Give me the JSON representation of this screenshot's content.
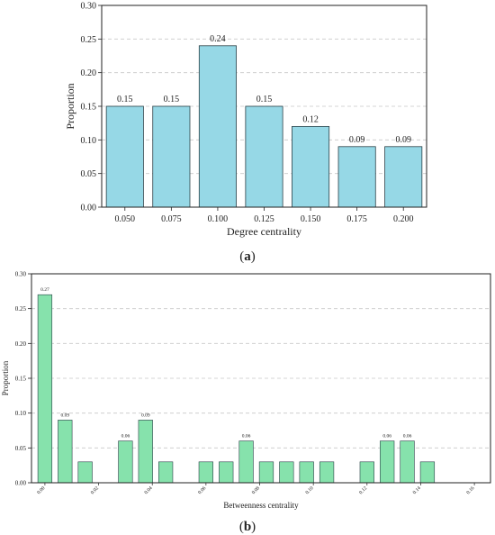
{
  "panels": [
    {
      "caption_letter": "a"
    },
    {
      "caption_letter": "b"
    }
  ],
  "colors": {
    "bar_a": "#96d8e6",
    "bar_b": "#86e2ac",
    "bar_edge": "#2b4148",
    "grid": "#c8c8c8"
  },
  "chart_data": [
    {
      "type": "bar",
      "categories": [
        "0.050",
        "0.075",
        "0.100",
        "0.125",
        "0.150",
        "0.175",
        "0.200"
      ],
      "values": [
        0.15,
        0.15,
        0.24,
        0.15,
        0.12,
        0.09,
        0.09
      ],
      "data_labels": [
        "0.15",
        "0.15",
        "0.24",
        "0.15",
        "0.12",
        "0.09",
        "0.09"
      ],
      "xlabel": "Degree centrality",
      "ylabel": "Proportion",
      "ylim": [
        0,
        0.3
      ],
      "yticks": [
        "0.00",
        "0.05",
        "0.10",
        "0.15",
        "0.20",
        "0.25",
        "0.30"
      ],
      "grid": "horizontal dashed"
    },
    {
      "type": "bar",
      "x": [
        0.0,
        0.0075,
        0.015,
        0.03,
        0.0375,
        0.045,
        0.06,
        0.0675,
        0.075,
        0.0825,
        0.09,
        0.0975,
        0.105,
        0.12,
        0.1275,
        0.135,
        0.1425
      ],
      "values": [
        0.27,
        0.09,
        0.03,
        0.06,
        0.09,
        0.03,
        0.03,
        0.03,
        0.06,
        0.03,
        0.03,
        0.03,
        0.03,
        0.03,
        0.06,
        0.06,
        0.03
      ],
      "data_labels": [
        "0.27",
        "0.09",
        "",
        "0.06",
        "0.09",
        "",
        "",
        "",
        "0.06",
        "",
        "",
        "",
        "",
        "",
        "0.06",
        "0.06",
        ""
      ],
      "xticks": [
        "0.00",
        "0.02",
        "0.04",
        "0.06",
        "0.08",
        "0.10",
        "0.12",
        "0.14",
        "0.16"
      ],
      "xlim": [
        -0.005,
        0.166
      ],
      "xlabel": "Betweenness centrality",
      "ylabel": "Proportion",
      "ylim": [
        0,
        0.3
      ],
      "yticks": [
        "0.00",
        "0.05",
        "0.10",
        "0.15",
        "0.20",
        "0.25",
        "0.30"
      ],
      "grid": "horizontal dashed"
    }
  ]
}
